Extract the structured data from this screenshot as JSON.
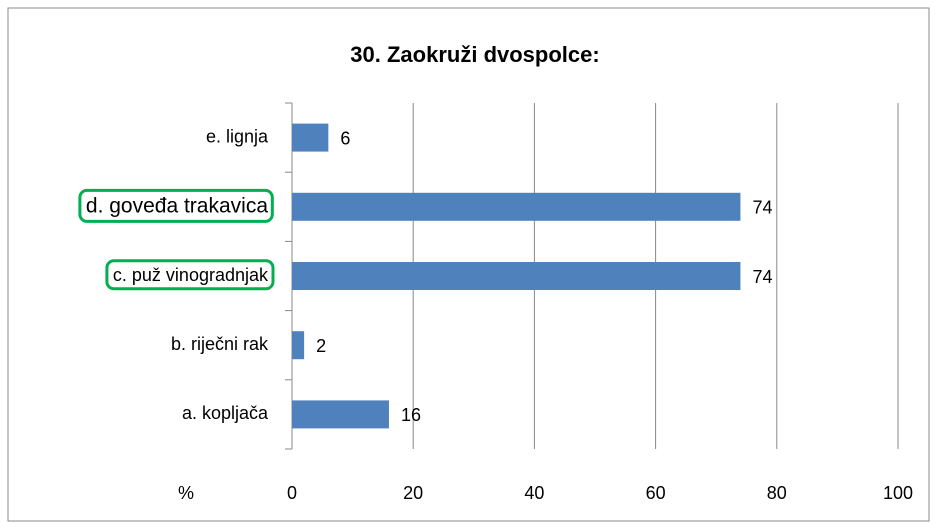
{
  "chart_data": {
    "type": "bar",
    "orientation": "horizontal",
    "title": "30. Zaokruži dvospolce:",
    "categories": [
      "a. kopljača",
      "b. riječni rak",
      "c. puž vinogradnjak",
      "d. goveđa trakavica",
      "e. lignja"
    ],
    "values": [
      16,
      2,
      74,
      74,
      6
    ],
    "color": "#4f81bd",
    "xlabel": "%",
    "xlim": [
      0,
      100
    ],
    "xticks": [
      0,
      20,
      40,
      60,
      80,
      100
    ],
    "grid": true,
    "highlighted": [
      2,
      3
    ],
    "highlight_color": "#00b050"
  }
}
